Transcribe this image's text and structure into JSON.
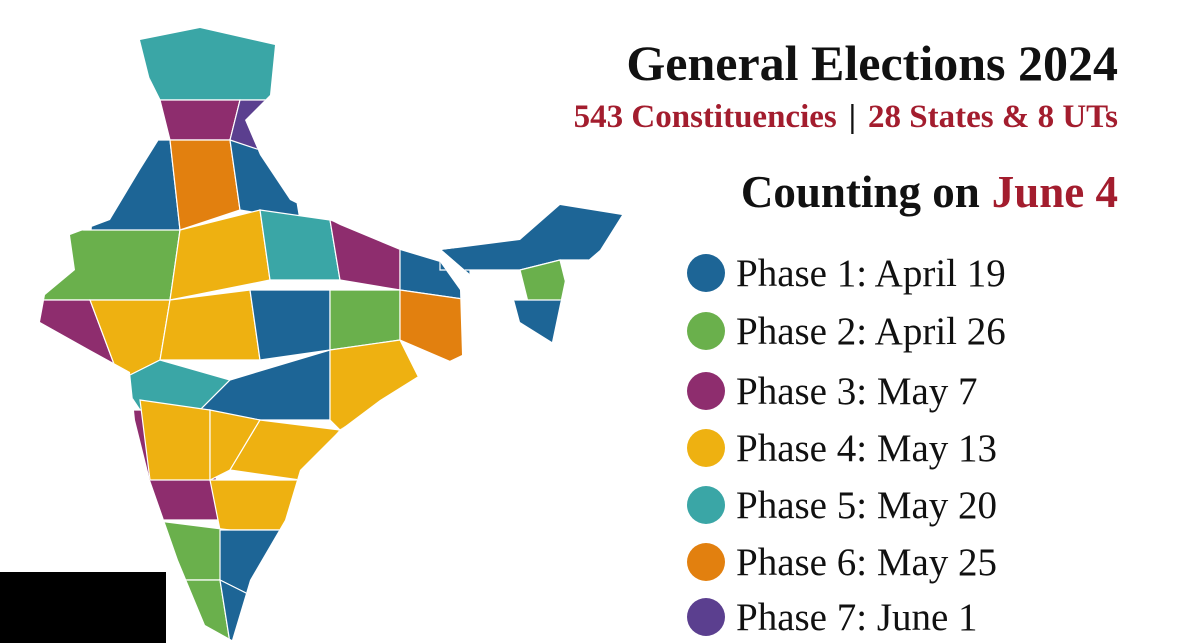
{
  "header": {
    "title": "General Elections 2024",
    "subtitle": {
      "constituencies": "543 Constituencies",
      "separator": "|",
      "states": "28 States & 8 UTs"
    },
    "counting": {
      "prefix": "Counting on",
      "date": "June 4"
    }
  },
  "legend": [
    {
      "label": "Phase 1: April 19",
      "color": "#1d6596"
    },
    {
      "label": "Phase 2: April 26",
      "color": "#6ab04c"
    },
    {
      "label": "Phase 3: May 7",
      "color": "#8e2d6e"
    },
    {
      "label": "Phase 4: May 13",
      "color": "#eeb111"
    },
    {
      "label": "Phase 5: May 20",
      "color": "#3aa6a6"
    },
    {
      "label": "Phase 6: May 25",
      "color": "#e2800f"
    },
    {
      "label": "Phase 7: June 1",
      "color": "#5b3f8f"
    }
  ]
}
